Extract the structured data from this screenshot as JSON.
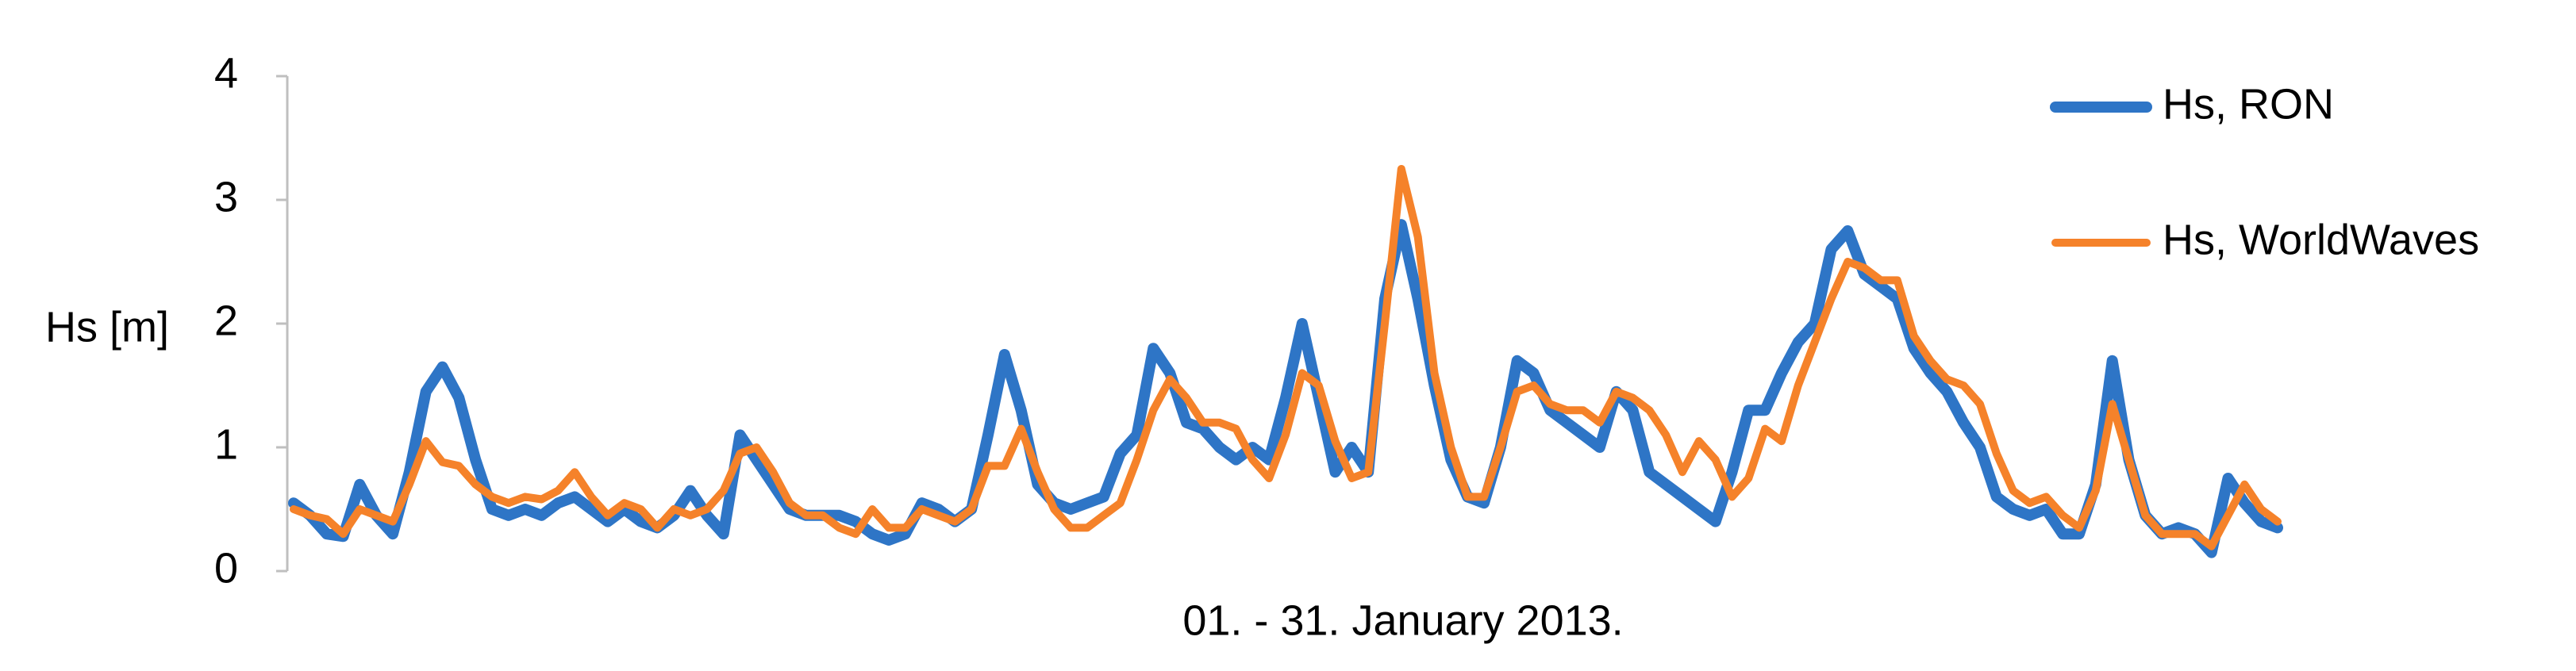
{
  "chart_data": {
    "type": "line",
    "ylabel": "Hs [m]",
    "xlabel": "01. - 31. January 2013.",
    "ylim": [
      0,
      4
    ],
    "yticks": [
      0,
      1,
      2,
      3,
      4
    ],
    "legend": "right",
    "series": [
      {
        "name": "Hs, RON",
        "color": "#2e75c6",
        "values": [
          0.55,
          0.45,
          0.3,
          0.28,
          0.7,
          0.45,
          0.3,
          0.8,
          1.45,
          1.65,
          1.4,
          0.9,
          0.5,
          0.45,
          0.5,
          0.45,
          0.55,
          0.6,
          0.5,
          0.4,
          0.5,
          0.4,
          0.35,
          0.45,
          0.65,
          0.45,
          0.3,
          1.1,
          0.9,
          0.7,
          0.5,
          0.45,
          0.45,
          0.45,
          0.4,
          0.3,
          0.25,
          0.3,
          0.55,
          0.5,
          0.4,
          0.5,
          1.1,
          1.75,
          1.3,
          0.7,
          0.55,
          0.5,
          0.55,
          0.6,
          0.95,
          1.1,
          1.8,
          1.6,
          1.2,
          1.15,
          1.0,
          0.9,
          1.0,
          0.9,
          1.4,
          2.0,
          1.4,
          0.8,
          1.0,
          0.8,
          2.2,
          2.8,
          2.2,
          1.5,
          0.9,
          0.6,
          0.55,
          1.0,
          1.7,
          1.6,
          1.3,
          1.2,
          1.1,
          1.0,
          1.45,
          1.3,
          0.8,
          0.7,
          0.6,
          0.5,
          0.4,
          0.8,
          1.3,
          1.3,
          1.6,
          1.85,
          2.0,
          2.6,
          2.75,
          2.4,
          2.3,
          2.2,
          1.8,
          1.6,
          1.45,
          1.2,
          1.0,
          0.6,
          0.5,
          0.45,
          0.5,
          0.3,
          0.3,
          0.7,
          1.7,
          0.9,
          0.45,
          0.3,
          0.35,
          0.3,
          0.15,
          0.75,
          0.55,
          0.4,
          0.35
        ]
      },
      {
        "name": "Hs, WorldWaves",
        "color": "#f5822a",
        "values": [
          0.5,
          0.45,
          0.42,
          0.3,
          0.5,
          0.45,
          0.4,
          0.7,
          1.05,
          0.88,
          0.85,
          0.7,
          0.6,
          0.55,
          0.6,
          0.58,
          0.65,
          0.8,
          0.6,
          0.45,
          0.55,
          0.5,
          0.35,
          0.5,
          0.45,
          0.5,
          0.65,
          0.95,
          1.0,
          0.8,
          0.55,
          0.45,
          0.45,
          0.35,
          0.3,
          0.5,
          0.35,
          0.35,
          0.5,
          0.45,
          0.4,
          0.5,
          0.85,
          0.85,
          1.15,
          0.8,
          0.5,
          0.35,
          0.35,
          0.45,
          0.55,
          0.9,
          1.3,
          1.55,
          1.4,
          1.2,
          1.2,
          1.15,
          0.9,
          0.75,
          1.1,
          1.6,
          1.5,
          1.05,
          0.75,
          0.8,
          2.0,
          3.25,
          2.7,
          1.6,
          1.0,
          0.6,
          0.6,
          1.0,
          1.45,
          1.5,
          1.35,
          1.3,
          1.3,
          1.2,
          1.45,
          1.4,
          1.3,
          1.1,
          0.8,
          1.05,
          0.9,
          0.6,
          0.75,
          1.15,
          1.05,
          1.5,
          1.85,
          2.2,
          2.5,
          2.45,
          2.35,
          2.35,
          1.9,
          1.7,
          1.55,
          1.5,
          1.35,
          0.95,
          0.65,
          0.55,
          0.6,
          0.45,
          0.35,
          0.65,
          1.35,
          0.9,
          0.45,
          0.3,
          0.3,
          0.3,
          0.2,
          0.45,
          0.7,
          0.5,
          0.4
        ]
      }
    ]
  }
}
